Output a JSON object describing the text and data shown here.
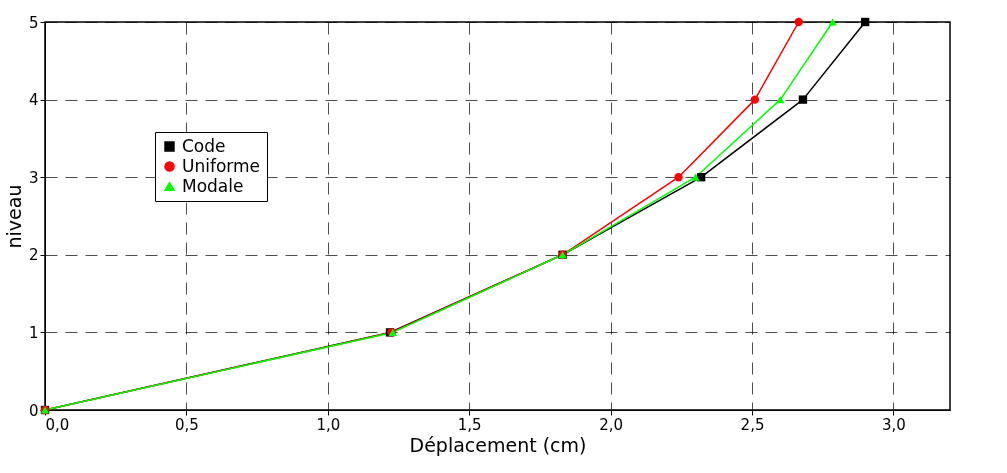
{
  "chart_data": {
    "type": "line",
    "xlabel": "Déplacement (cm)",
    "ylabel": "niveau",
    "xlim": [
      0,
      3.2
    ],
    "xticks": [
      {
        "value": 0,
        "label": "0,0"
      },
      {
        "value": 0.5,
        "label": "0,5"
      },
      {
        "value": 1,
        "label": "1,0"
      },
      {
        "value": 1.5,
        "label": "1,5"
      },
      {
        "value": 2,
        "label": "2,0"
      },
      {
        "value": 2.5,
        "label": "2,5"
      },
      {
        "value": 3,
        "label": "3,0"
      }
    ],
    "ylim": [
      0,
      5
    ],
    "yticks": [
      0,
      1,
      2,
      3,
      4,
      5
    ],
    "grid": true,
    "legend": "top left",
    "line_style": "solid",
    "series": [
      {
        "name": "Code",
        "color": "#000000",
        "marker": "square",
        "x": [
          0,
          1.22,
          1.83,
          2.32,
          2.68,
          2.9
        ],
        "values": [
          0,
          1,
          2,
          3,
          4,
          5
        ]
      },
      {
        "name": "Uniforme",
        "color": "#ff0000",
        "marker": "circle",
        "x": [
          0,
          1.225,
          1.83,
          2.24,
          2.51,
          2.665
        ],
        "values": [
          0,
          1,
          2,
          3,
          4,
          5
        ]
      },
      {
        "name": "Modale",
        "color": "#00ff00",
        "marker": "triangle",
        "x": [
          0,
          1.23,
          1.83,
          2.3,
          2.6,
          2.785
        ],
        "values": [
          0,
          1,
          2,
          3,
          4,
          5
        ]
      }
    ]
  }
}
